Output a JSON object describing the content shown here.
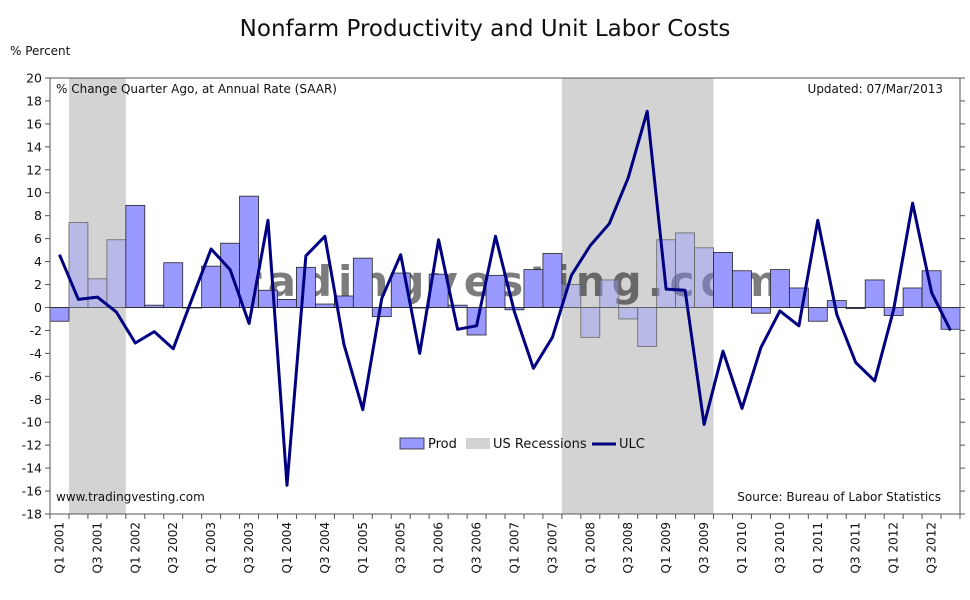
{
  "chart_data": {
    "type": "bar+line",
    "title": "Nonfarm Productivity and Unit Labor Costs",
    "ylabel": "% Percent",
    "subtitle": "% Change Quarter Ago, at Annual Rate (SAAR)",
    "updated": "Updated: 07/Mar/2013",
    "website": "www.tradingvesting.com",
    "source": "Source: Bureau of Labor Statistics",
    "watermark": "tradingvesting.com",
    "ylim": [
      -18,
      20
    ],
    "yticks": [
      20,
      18,
      16,
      14,
      12,
      10,
      8,
      6,
      4,
      2,
      0,
      -2,
      -4,
      -6,
      -8,
      -10,
      -12,
      -14,
      -16,
      -18
    ],
    "xtick_labels": [
      "Q1 2001",
      "Q3 2001",
      "Q1 2002",
      "Q3 2002",
      "Q1 2003",
      "Q3 2003",
      "Q1 2004",
      "Q3 2004",
      "Q1 2005",
      "Q3 2005",
      "Q1 2006",
      "Q3 2006",
      "Q1 2007",
      "Q3 2007",
      "Q1 2008",
      "Q3 2008",
      "Q1 2009",
      "Q3 2009",
      "Q1 2010",
      "Q3 2010",
      "Q1 2011",
      "Q3 2011",
      "Q1 2012",
      "Q3 2012"
    ],
    "quarters": [
      "Q1 2001",
      "Q2 2001",
      "Q3 2001",
      "Q4 2001",
      "Q1 2002",
      "Q2 2002",
      "Q3 2002",
      "Q4 2002",
      "Q1 2003",
      "Q2 2003",
      "Q3 2003",
      "Q4 2003",
      "Q1 2004",
      "Q2 2004",
      "Q3 2004",
      "Q4 2004",
      "Q1 2005",
      "Q2 2005",
      "Q3 2005",
      "Q4 2005",
      "Q1 2006",
      "Q2 2006",
      "Q3 2006",
      "Q4 2006",
      "Q1 2007",
      "Q2 2007",
      "Q3 2007",
      "Q4 2007",
      "Q1 2008",
      "Q2 2008",
      "Q3 2008",
      "Q4 2008",
      "Q1 2009",
      "Q2 2009",
      "Q3 2009",
      "Q4 2009",
      "Q1 2010",
      "Q2 2010",
      "Q3 2010",
      "Q4 2010",
      "Q1 2011",
      "Q2 2011",
      "Q3 2011",
      "Q4 2011",
      "Q1 2012",
      "Q2 2012",
      "Q3 2012",
      "Q4 2012"
    ],
    "recessions": [
      [
        1,
        3
      ],
      [
        27,
        34
      ]
    ],
    "series": [
      {
        "name": "Prod",
        "type": "bar",
        "color": "#9999ff",
        "values": [
          -1.2,
          7.4,
          2.5,
          5.9,
          8.9,
          0.2,
          3.9,
          0.0,
          3.6,
          5.6,
          9.7,
          1.5,
          0.7,
          3.5,
          0.3,
          1.0,
          4.3,
          -0.8,
          3.0,
          0.0,
          2.9,
          0.2,
          -2.4,
          2.8,
          -0.2,
          3.3,
          4.7,
          2.0,
          -2.6,
          2.4,
          -1.0,
          -3.4,
          5.9,
          6.5,
          5.2,
          4.8,
          3.2,
          -0.5,
          3.3,
          1.7,
          -1.2,
          0.6,
          -0.1,
          2.4,
          -0.7,
          1.7,
          3.2,
          -1.9
        ]
      },
      {
        "name": "US Recessions",
        "type": "band",
        "color": "#d3d3d3"
      },
      {
        "name": "ULC",
        "type": "line",
        "color": "#000080",
        "values": [
          4.6,
          0.7,
          0.9,
          -0.4,
          -3.1,
          -2.1,
          -3.6,
          0.8,
          5.1,
          3.3,
          -1.4,
          7.6,
          -15.5,
          4.5,
          6.2,
          -3.2,
          -8.9,
          0.8,
          4.6,
          -4.0,
          5.9,
          -1.9,
          -1.6,
          6.2,
          -0.4,
          -5.3,
          -2.6,
          2.8,
          5.4,
          7.3,
          11.3,
          17.1,
          1.6,
          1.5,
          -10.2,
          -3.8,
          -8.8,
          -3.5,
          -0.3,
          -1.6,
          7.6,
          -0.6,
          -4.8,
          -6.4,
          -0.2,
          9.1,
          1.3,
          -2.0
        ]
      }
    ]
  }
}
